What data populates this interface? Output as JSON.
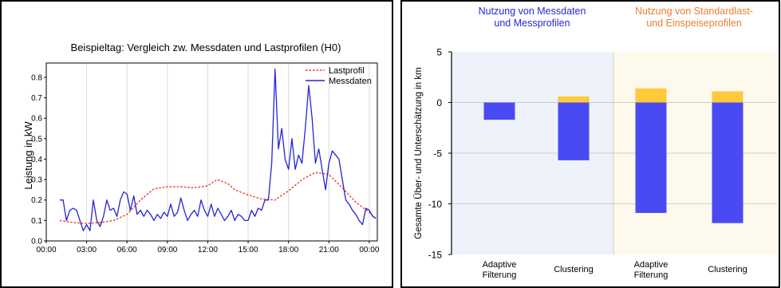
{
  "chart_data": [
    {
      "type": "line",
      "title": "Beispieltag: Vergleich zw.  Messdaten und Lastprofilen (H0)",
      "ylabel": "Leistung in kW",
      "xlabel": "",
      "x_ticks": [
        "00:00",
        "03:00",
        "06:00",
        "09:00",
        "12:00",
        "15:00",
        "18:00",
        "21:00",
        "00:00"
      ],
      "x_tick_hours": [
        0,
        3,
        6,
        9,
        12,
        15,
        18,
        21,
        24
      ],
      "xlim": [
        0,
        24.6
      ],
      "y_ticks": [
        "0.0",
        "0.1",
        "0.2",
        "0.3",
        "0.4",
        "0.5",
        "0.6",
        "0.7",
        "0.8"
      ],
      "y_tick_values": [
        0.0,
        0.1,
        0.2,
        0.3,
        0.4,
        0.5,
        0.6,
        0.7,
        0.8
      ],
      "ylim": [
        0.0,
        0.87
      ],
      "grid": "vertical",
      "legend": "top-right",
      "series": [
        {
          "name": "Lastprofil",
          "color": "#e8382d",
          "style": "dotted",
          "x": [
            1.0,
            2.0,
            3.0,
            4.0,
            5.0,
            6.0,
            7.0,
            8.0,
            9.0,
            10.0,
            11.0,
            12.0,
            12.7,
            13.5,
            14.0,
            15.0,
            16.0,
            17.0,
            18.0,
            19.0,
            20.0,
            21.0,
            22.0,
            23.0,
            24.0,
            24.5
          ],
          "y": [
            0.1,
            0.09,
            0.085,
            0.09,
            0.1,
            0.13,
            0.2,
            0.255,
            0.265,
            0.265,
            0.26,
            0.27,
            0.3,
            0.28,
            0.25,
            0.225,
            0.205,
            0.2,
            0.245,
            0.3,
            0.335,
            0.325,
            0.26,
            0.19,
            0.14,
            0.11
          ]
        },
        {
          "name": "Messdaten",
          "color": "#2424d6",
          "style": "solid",
          "x": [
            1.0,
            1.25,
            1.5,
            1.75,
            2.0,
            2.25,
            2.5,
            2.75,
            3.0,
            3.25,
            3.5,
            3.75,
            4.0,
            4.25,
            4.5,
            4.75,
            5.0,
            5.25,
            5.5,
            5.75,
            6.0,
            6.25,
            6.5,
            6.75,
            7.0,
            7.25,
            7.5,
            7.75,
            8.0,
            8.25,
            8.5,
            8.75,
            9.0,
            9.25,
            9.5,
            9.75,
            10.0,
            10.25,
            10.5,
            10.75,
            11.0,
            11.25,
            11.5,
            11.75,
            12.0,
            12.25,
            12.5,
            12.75,
            13.0,
            13.25,
            13.5,
            13.75,
            14.0,
            14.25,
            14.5,
            14.75,
            15.0,
            15.25,
            15.5,
            15.75,
            16.0,
            16.25,
            16.5,
            16.75,
            17.0,
            17.25,
            17.5,
            17.75,
            18.0,
            18.25,
            18.5,
            18.75,
            19.0,
            19.25,
            19.5,
            19.75,
            20.0,
            20.25,
            20.5,
            20.75,
            21.0,
            21.25,
            21.5,
            21.75,
            22.0,
            22.25,
            22.5,
            22.75,
            23.0,
            23.25,
            23.5,
            23.75,
            24.0,
            24.25,
            24.5
          ],
          "y": [
            0.2,
            0.2,
            0.1,
            0.15,
            0.16,
            0.15,
            0.1,
            0.05,
            0.08,
            0.05,
            0.2,
            0.1,
            0.07,
            0.12,
            0.2,
            0.15,
            0.16,
            0.12,
            0.2,
            0.24,
            0.23,
            0.15,
            0.22,
            0.13,
            0.15,
            0.12,
            0.15,
            0.13,
            0.1,
            0.13,
            0.11,
            0.14,
            0.12,
            0.18,
            0.12,
            0.14,
            0.21,
            0.15,
            0.1,
            0.13,
            0.15,
            0.12,
            0.2,
            0.15,
            0.12,
            0.18,
            0.12,
            0.16,
            0.13,
            0.1,
            0.12,
            0.15,
            0.1,
            0.13,
            0.12,
            0.1,
            0.1,
            0.15,
            0.12,
            0.16,
            0.15,
            0.2,
            0.2,
            0.38,
            0.84,
            0.45,
            0.55,
            0.4,
            0.35,
            0.5,
            0.35,
            0.42,
            0.38,
            0.55,
            0.76,
            0.6,
            0.38,
            0.45,
            0.35,
            0.25,
            0.38,
            0.44,
            0.42,
            0.4,
            0.3,
            0.2,
            0.18,
            0.15,
            0.13,
            0.1,
            0.08,
            0.16,
            0.15,
            0.12,
            0.11
          ]
        }
      ]
    },
    {
      "type": "bar",
      "ylabel": "Gesamte Über- und Unterschätzung in km",
      "xlabel": "",
      "ylim": [
        -15,
        5
      ],
      "y_ticks": [
        "5",
        "0",
        "-5",
        "-10",
        "-15"
      ],
      "y_tick_values": [
        5,
        0,
        -5,
        -10,
        -15
      ],
      "grid": "horizontal",
      "groups": [
        {
          "title_line1": "Nutzung von Messdaten",
          "title_line2": "und Messprofilen",
          "title_color": "#2626d8",
          "background": "#edf2fb"
        },
        {
          "title_line1": "Nutzung von Standardlast-",
          "title_line2": "und Einspeiseprofilen",
          "title_color": "#ed7d31",
          "background": "#fdf9ec"
        }
      ],
      "categories": [
        {
          "line1": "Adaptive",
          "line2": "Filterung"
        },
        {
          "line1": "Clustering",
          "line2": ""
        },
        {
          "line1": "Adaptive",
          "line2": "Filterung"
        },
        {
          "line1": "Clustering",
          "line2": ""
        }
      ],
      "series": [
        {
          "color": "#4a4af4",
          "values": [
            -1.7,
            -5.7,
            -10.9,
            -11.9
          ]
        },
        {
          "color": "#ffc93c",
          "values": [
            0.0,
            0.6,
            1.4,
            1.1
          ]
        }
      ]
    }
  ]
}
